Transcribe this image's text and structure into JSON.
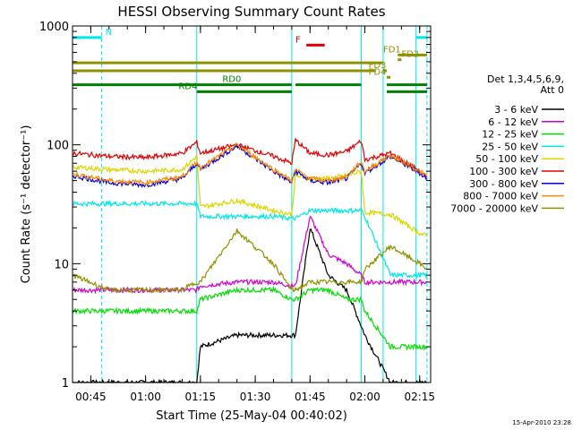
{
  "chart_data": {
    "type": "line",
    "title": "HESSI Observing Summary Count Rates",
    "xlabel": "Start Time (25-May-04 00:40:02)",
    "ylabel": "Count Rate (s⁻¹ detector⁻¹)",
    "yscale": "log",
    "ylim": [
      1,
      1000
    ],
    "xlim": [
      "00:40",
      "02:18"
    ],
    "x_ticks": [
      "00:45",
      "01:00",
      "01:15",
      "01:30",
      "01:45",
      "02:00",
      "02:15"
    ],
    "y_ticks": [
      "1",
      "10",
      "100",
      "1000"
    ],
    "grid": false,
    "legend": {
      "placement": "right",
      "header": [
        "Det 1,3,4,5,6,9,",
        "Att 0"
      ]
    },
    "timestamp": "15-Apr-2010 23:28",
    "x": [
      "00:40",
      "00:50",
      "01:00",
      "01:10",
      "01:14",
      "01:15",
      "01:25",
      "01:35",
      "01:40",
      "01:41",
      "01:45",
      "01:50",
      "01:55",
      "01:59",
      "02:00",
      "02:07",
      "02:15",
      "02:17"
    ],
    "series": [
      {
        "name": "3 - 6 keV",
        "color": "#000000",
        "values": [
          1,
          1,
          1,
          1,
          1,
          2,
          2.5,
          2.5,
          2.5,
          2.5,
          20,
          8,
          6,
          3,
          2.5,
          1,
          1,
          1
        ]
      },
      {
        "name": "6 - 12 keV",
        "color": "#d000d0",
        "values": [
          6,
          6,
          6,
          6,
          6,
          6.5,
          7,
          7,
          6.5,
          6.5,
          25,
          12,
          10,
          8,
          7,
          7,
          7,
          7
        ]
      },
      {
        "name": "12 - 25 keV",
        "color": "#00e000",
        "values": [
          4,
          4,
          4,
          4,
          4,
          5,
          6,
          6,
          5,
          5,
          6,
          6,
          5,
          5,
          4,
          2,
          2,
          2
        ]
      },
      {
        "name": "25 - 50 keV",
        "color": "#00e8e8",
        "values": [
          32,
          32,
          32,
          32,
          32,
          25,
          25,
          25,
          24,
          24,
          28,
          28,
          28,
          28,
          25,
          8,
          8,
          8
        ]
      },
      {
        "name": "50 - 100 keV",
        "color": "#d8d800",
        "values": [
          65,
          62,
          60,
          62,
          80,
          30,
          34,
          28,
          26,
          55,
          52,
          52,
          55,
          60,
          27,
          26,
          18,
          17
        ]
      },
      {
        "name": "100 - 300 keV",
        "color": "#e00000",
        "values": [
          85,
          80,
          78,
          85,
          105,
          85,
          100,
          80,
          70,
          110,
          85,
          82,
          88,
          108,
          75,
          85,
          60,
          52
        ]
      },
      {
        "name": "300 - 800 keV",
        "color": "#0000e0",
        "values": [
          55,
          48,
          46,
          52,
          70,
          62,
          98,
          60,
          48,
          60,
          50,
          48,
          52,
          70,
          58,
          80,
          58,
          52
        ]
      },
      {
        "name": "800 - 7000 keV",
        "color": "#ff8800",
        "values": [
          57,
          50,
          48,
          54,
          72,
          64,
          100,
          62,
          50,
          62,
          52,
          50,
          54,
          72,
          60,
          82,
          60,
          55
        ]
      },
      {
        "name": "7000 - 20000 keV",
        "color": "#909000",
        "values": [
          8,
          6,
          6,
          6,
          7,
          7,
          19,
          10,
          6,
          6,
          7,
          7,
          7,
          7,
          9,
          14,
          10,
          9
        ]
      }
    ],
    "vertical_lines": [
      {
        "time": "00:40",
        "style": "solid",
        "color": "#00e8e8"
      },
      {
        "time": "00:48",
        "style": "dashed",
        "color": "#00e8e8"
      },
      {
        "time": "01:14",
        "style": "solid",
        "color": "#00e8e8"
      },
      {
        "time": "01:40",
        "style": "solid",
        "color": "#00e8e8"
      },
      {
        "time": "01:59",
        "style": "solid",
        "color": "#00e8e8"
      },
      {
        "time": "02:05",
        "style": "solid",
        "color": "#00e8e8"
      },
      {
        "time": "02:14",
        "style": "solid",
        "color": "#00e8e8"
      },
      {
        "time": "02:17",
        "style": "dashed",
        "color": "#00e8e8"
      }
    ],
    "flag_bars": [
      {
        "label": "N",
        "color": "#00e8e8",
        "y": 800,
        "segments": [
          [
            "00:40",
            "00:48"
          ],
          [
            "02:14",
            "02:17"
          ]
        ],
        "label_time": "00:49"
      },
      {
        "label": "F",
        "color": "#e00000",
        "y": 690,
        "segments": [
          [
            "01:44",
            "01:49"
          ]
        ],
        "label_time": "01:41"
      },
      {
        "label": "FD1",
        "color": "#909000",
        "y": 570,
        "segments": [
          [
            "02:09",
            "02:17"
          ]
        ],
        "label_time": "02:05"
      },
      {
        "label": "FD2",
        "color": "#909000",
        "y": 520,
        "segments": [
          [
            "02:09",
            "02:10"
          ]
        ],
        "label_time": "02:10"
      },
      {
        "label": "",
        "color": "#909000",
        "y": 490,
        "segments": [
          [
            "00:40",
            "02:05"
          ]
        ],
        "label_time": ""
      },
      {
        "label": "FD3",
        "color": "#909000",
        "y": 420,
        "segments": [
          [
            "00:40",
            "02:03"
          ],
          [
            "02:05",
            "02:06"
          ]
        ],
        "label_time": "02:01"
      },
      {
        "label": "FD4",
        "color": "#909000",
        "y": 370,
        "segments": [
          [
            "02:06",
            "02:07"
          ]
        ],
        "label_time": "02:01"
      },
      {
        "label": "RD0",
        "color": "#008000",
        "y": 320,
        "segments": [
          [
            "00:40",
            "01:40"
          ],
          [
            "01:41",
            "01:59"
          ],
          [
            "02:06",
            "02:17"
          ]
        ],
        "label_time": "01:21"
      },
      {
        "label": "RD4",
        "color": "#008000",
        "y": 280,
        "segments": [
          [
            "01:14",
            "01:40"
          ],
          [
            "02:06",
            "02:17"
          ]
        ],
        "label_time": "01:09"
      }
    ]
  }
}
